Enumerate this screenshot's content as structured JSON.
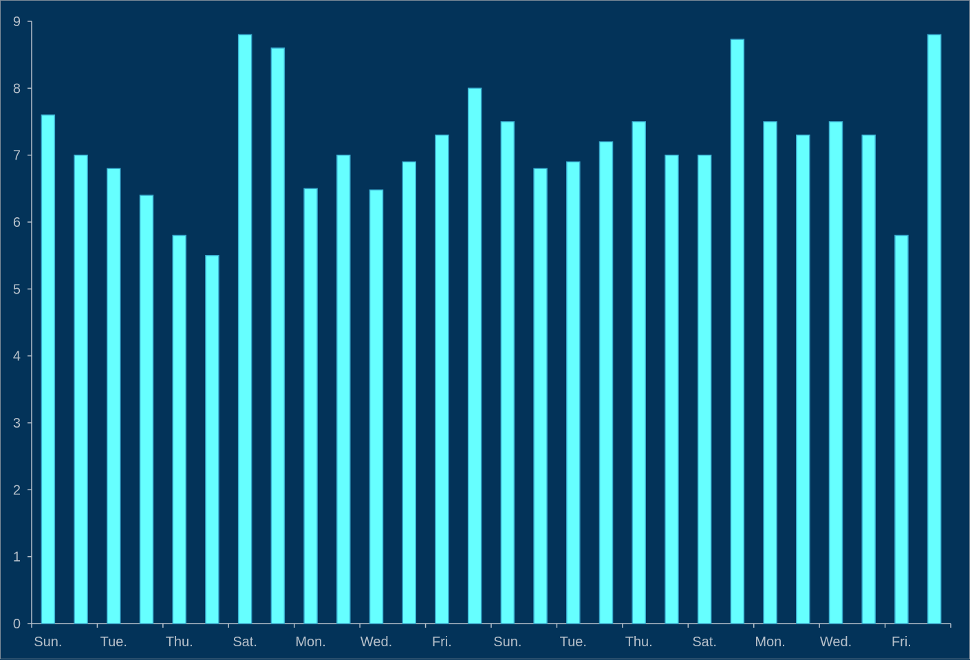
{
  "chart_data": {
    "type": "bar",
    "categories": [
      "Sun.",
      "",
      "Tue.",
      "",
      "Thu.",
      "",
      "Sat.",
      "",
      "Mon.",
      "",
      "Wed.",
      "",
      "Fri.",
      "",
      "Sun.",
      "",
      "Tue.",
      "",
      "Thu.",
      "",
      "Sat.",
      "",
      "Mon.",
      "",
      "Wed.",
      "",
      "Fri.",
      ""
    ],
    "values": [
      7.6,
      7.0,
      6.8,
      6.4,
      5.8,
      5.5,
      8.8,
      8.6,
      6.5,
      7.0,
      6.48,
      6.9,
      7.3,
      8.0,
      7.5,
      6.8,
      6.9,
      7.2,
      7.5,
      7.0,
      7.0,
      8.73,
      7.5,
      7.3,
      7.5,
      7.3,
      5.8,
      8.8
    ],
    "ylim": [
      0,
      9
    ],
    "yticks": [
      "0",
      "1",
      "2",
      "3",
      "4",
      "5",
      "6",
      "7",
      "8",
      "9"
    ],
    "grid": false,
    "colors": {
      "background": "#033359",
      "bar": "#66ffff",
      "bar_border": "#3aaed0",
      "axis": "#b6c0ca"
    }
  }
}
